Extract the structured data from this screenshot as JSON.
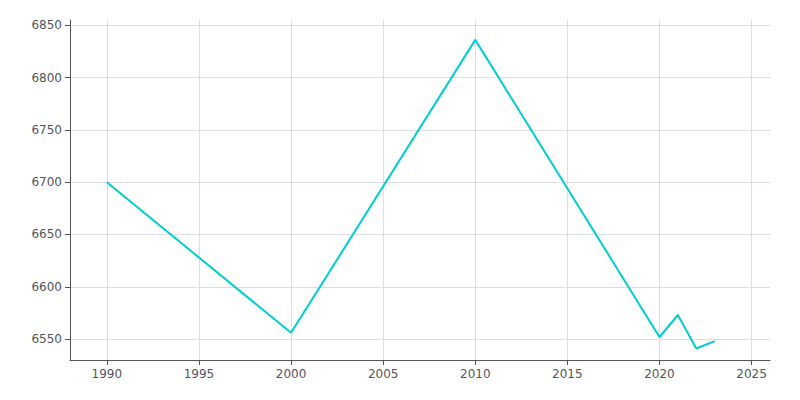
{
  "chart_data": {
    "type": "line",
    "x": [
      1990,
      2000,
      2010,
      2020,
      2021,
      2022,
      2023
    ],
    "values": [
      6700,
      6556,
      6836,
      6552,
      6573,
      6541,
      6548
    ],
    "color": "#00CED1",
    "xlim": [
      1988,
      2026
    ],
    "ylim": [
      6530,
      6855
    ],
    "xticks": [
      1990,
      1995,
      2000,
      2005,
      2010,
      2015,
      2020,
      2025
    ],
    "yticks": [
      6550,
      6600,
      6650,
      6700,
      6750,
      6800,
      6850
    ],
    "grid": true
  }
}
